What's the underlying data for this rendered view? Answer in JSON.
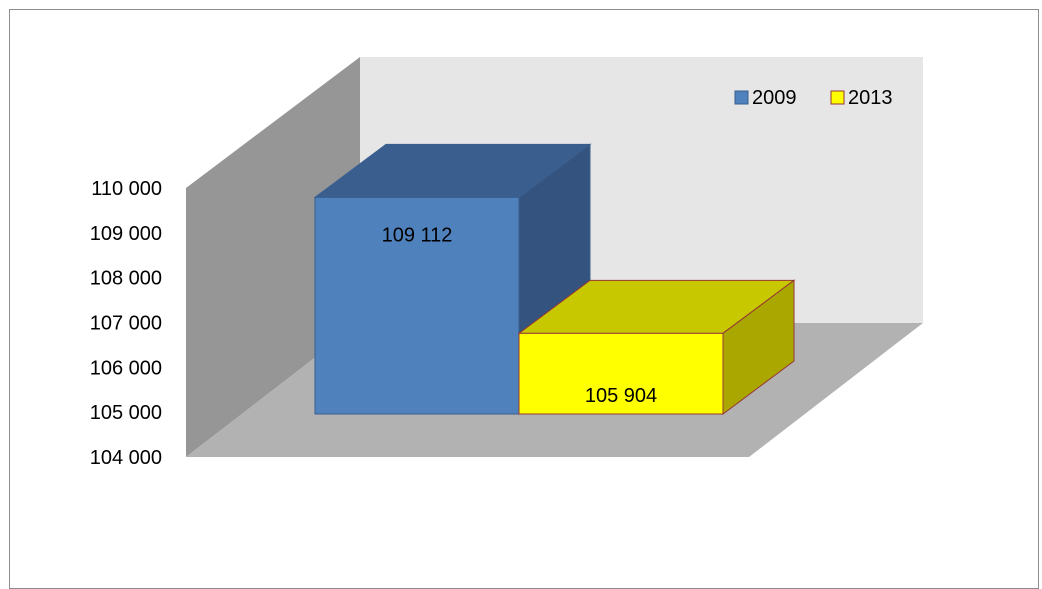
{
  "chart_data": {
    "type": "bar",
    "categories": [
      ""
    ],
    "series": [
      {
        "name": "2009",
        "values": [
          109112
        ],
        "label": "109 112",
        "color": "#4f81bd"
      },
      {
        "name": "2013",
        "values": [
          105904
        ],
        "label": "105 904",
        "color": "#ffff00"
      }
    ],
    "ylim": [
      104000,
      110000
    ],
    "yticks": [
      {
        "value": 104000,
        "label": "104 000"
      },
      {
        "value": 105000,
        "label": "105 000"
      },
      {
        "value": 106000,
        "label": "106 000"
      },
      {
        "value": 107000,
        "label": "107 000"
      },
      {
        "value": 108000,
        "label": "108 000"
      },
      {
        "value": 109000,
        "label": "109 000"
      },
      {
        "value": 110000,
        "label": "110 000"
      }
    ],
    "legend_position": "top-right",
    "style": "3d-column",
    "wall_colors": {
      "back": "#e6e6e6",
      "side": "#969696",
      "floor": "#b2b2b2"
    }
  }
}
